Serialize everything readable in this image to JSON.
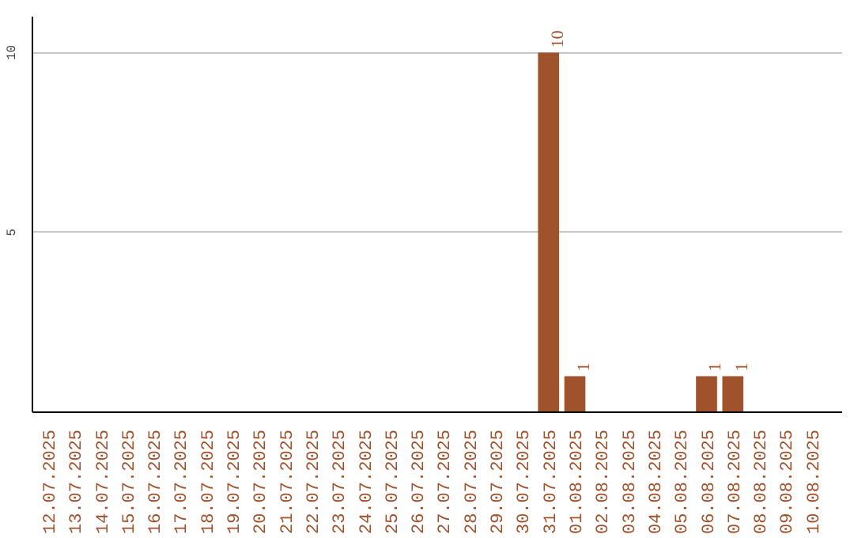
{
  "chart_data": {
    "type": "bar",
    "categories": [
      "12.07.2025",
      "13.07.2025",
      "14.07.2025",
      "15.07.2025",
      "16.07.2025",
      "17.07.2025",
      "18.07.2025",
      "19.07.2025",
      "20.07.2025",
      "21.07.2025",
      "22.07.2025",
      "23.07.2025",
      "24.07.2025",
      "25.07.2025",
      "26.07.2025",
      "27.07.2025",
      "28.07.2025",
      "29.07.2025",
      "30.07.2025",
      "31.07.2025",
      "01.08.2025",
      "02.08.2025",
      "03.08.2025",
      "04.08.2025",
      "05.08.2025",
      "06.08.2025",
      "07.08.2025",
      "08.08.2025",
      "09.08.2025",
      "10.08.2025"
    ],
    "values": [
      0,
      0,
      0,
      0,
      0,
      0,
      0,
      0,
      0,
      0,
      0,
      0,
      0,
      0,
      0,
      0,
      0,
      0,
      0,
      10,
      1,
      0,
      0,
      0,
      0,
      1,
      1,
      0,
      0,
      0
    ],
    "value_labels": [
      null,
      null,
      null,
      null,
      null,
      null,
      null,
      null,
      null,
      null,
      null,
      null,
      null,
      null,
      null,
      null,
      null,
      null,
      null,
      "10",
      "1",
      null,
      null,
      null,
      null,
      "1",
      "1",
      null,
      null,
      null
    ],
    "color": "#a0522d",
    "ylim": [
      0,
      11
    ],
    "yticks": [
      5,
      10
    ],
    "grid": "y"
  }
}
